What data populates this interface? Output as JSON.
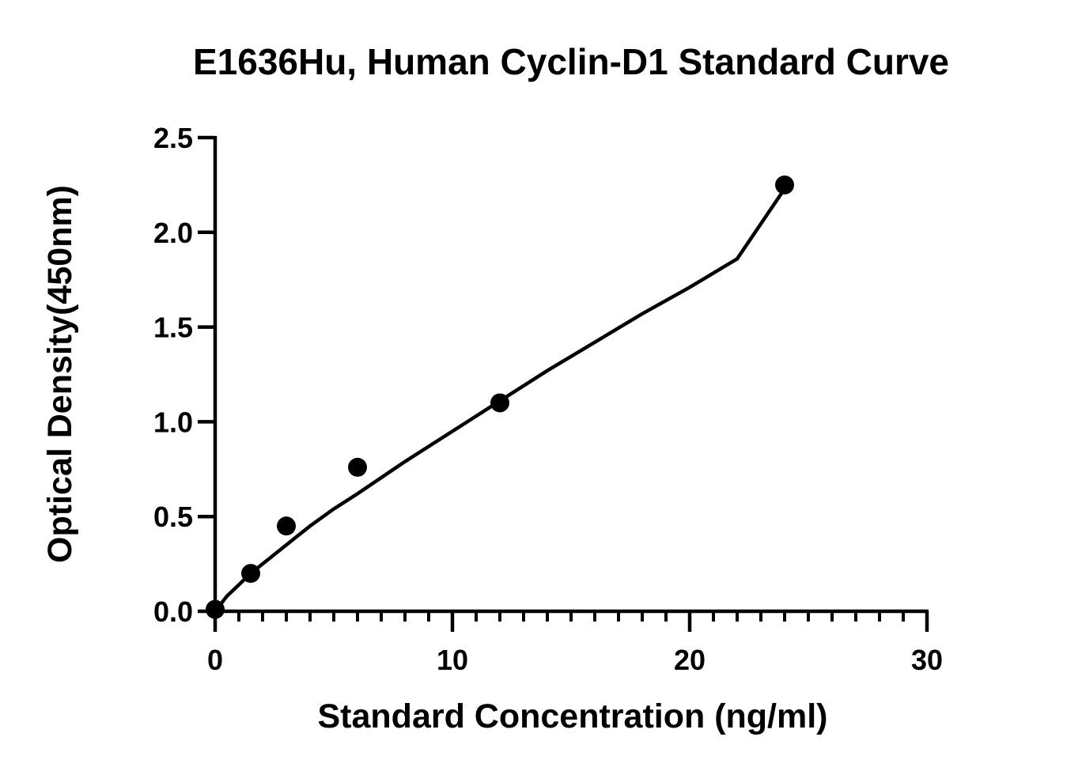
{
  "chart_data": {
    "type": "scatter",
    "title": "E1636Hu, Human Cyclin-D1 Standard Curve",
    "xlabel": "Standard Concentration (ng/ml)",
    "ylabel": "Optical Density(450nm)",
    "xlim": [
      0,
      30
    ],
    "ylim": [
      0,
      2.5
    ],
    "x_ticks": [
      "0",
      "10",
      "20",
      "30"
    ],
    "y_ticks": [
      "0.0",
      "0.5",
      "1.0",
      "1.5",
      "2.0",
      "2.5"
    ],
    "x_tick_values": [
      0,
      10,
      20,
      30
    ],
    "y_tick_values": [
      0,
      0.5,
      1.0,
      1.5,
      2.0,
      2.5
    ],
    "x_minor_step": 1,
    "series": [
      {
        "x": [
          0,
          1.5,
          3,
          6,
          12,
          24
        ],
        "y": [
          0.01,
          0.2,
          0.45,
          0.76,
          1.1,
          2.25
        ]
      }
    ],
    "fit_curve": {
      "x": [
        0,
        0.5,
        1,
        1.5,
        2,
        3,
        4,
        5,
        6,
        8,
        10,
        12,
        14,
        16,
        18,
        20,
        22,
        24
      ],
      "y": [
        0.0,
        0.08,
        0.14,
        0.2,
        0.25,
        0.35,
        0.45,
        0.54,
        0.62,
        0.79,
        0.95,
        1.11,
        1.27,
        1.42,
        1.57,
        1.71,
        1.86,
        2.23
      ]
    },
    "grid": false,
    "legend": "none"
  }
}
